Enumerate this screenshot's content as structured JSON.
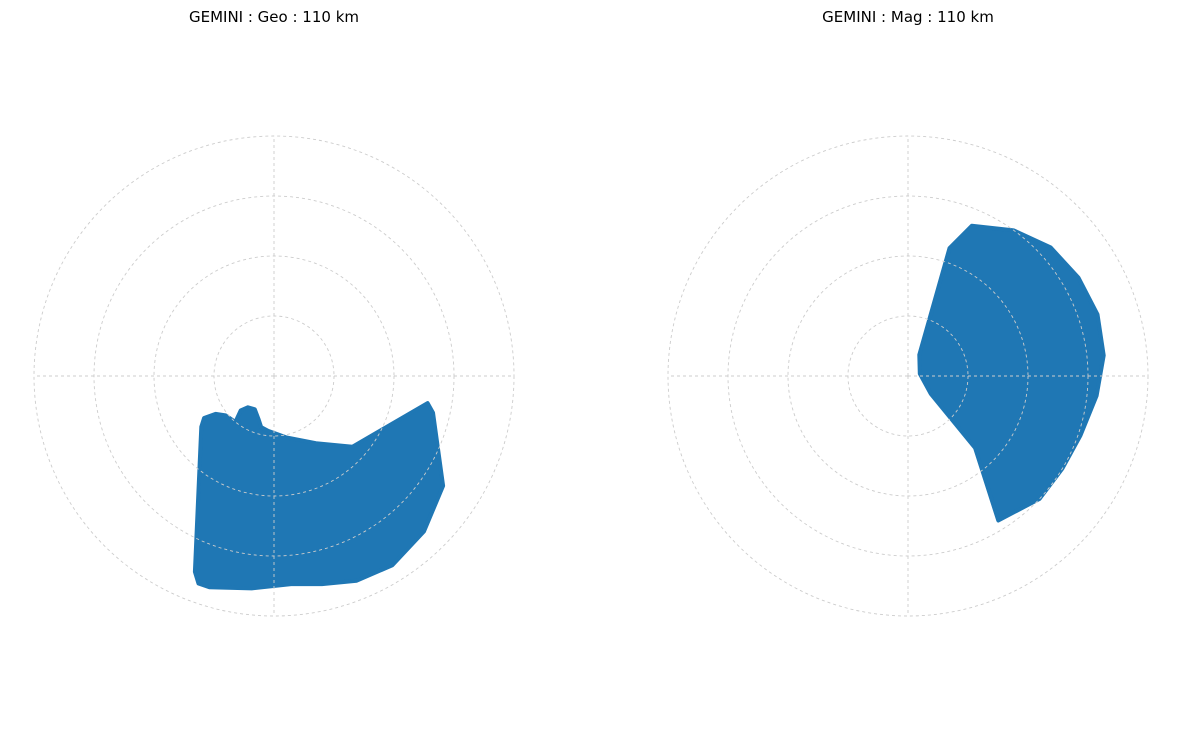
{
  "chart_data": [
    {
      "type": "polar",
      "title": "GEMINI : Geo : 110 km",
      "grid": true,
      "rings": 4,
      "spokes": 4,
      "color": "#1f77b4",
      "coverage_polygon": [
        {
          "r": 0.65,
          "theta": 350
        },
        {
          "r": 0.68,
          "theta": 347
        },
        {
          "r": 0.84,
          "theta": 327
        },
        {
          "r": 0.9,
          "theta": 314
        },
        {
          "r": 0.93,
          "theta": 302
        },
        {
          "r": 0.92,
          "theta": 292
        },
        {
          "r": 0.89,
          "theta": 283
        },
        {
          "r": 0.87,
          "theta": 275
        },
        {
          "r": 0.89,
          "theta": 264
        },
        {
          "r": 0.92,
          "theta": 253
        },
        {
          "r": 0.92,
          "theta": 250
        },
        {
          "r": 0.88,
          "theta": 248
        },
        {
          "r": 0.37,
          "theta": 215
        },
        {
          "r": 0.34,
          "theta": 211
        },
        {
          "r": 0.29,
          "theta": 213
        },
        {
          "r": 0.26,
          "theta": 219
        },
        {
          "r": 0.25,
          "theta": 230
        },
        {
          "r": 0.2,
          "theta": 226
        },
        {
          "r": 0.17,
          "theta": 230
        },
        {
          "r": 0.16,
          "theta": 240
        },
        {
          "r": 0.19,
          "theta": 250
        },
        {
          "r": 0.22,
          "theta": 256
        },
        {
          "r": 0.23,
          "theta": 264
        },
        {
          "r": 0.26,
          "theta": 281
        },
        {
          "r": 0.33,
          "theta": 302
        },
        {
          "r": 0.44,
          "theta": 318
        }
      ]
    },
    {
      "type": "polar",
      "title": "GEMINI : Mag : 110 km",
      "grid": true,
      "rings": 4,
      "spokes": 4,
      "color": "#1f77b4",
      "coverage_polygon": [
        {
          "r": 0.68,
          "theta": 67
        },
        {
          "r": 0.75,
          "theta": 54
        },
        {
          "r": 0.8,
          "theta": 42
        },
        {
          "r": 0.82,
          "theta": 30
        },
        {
          "r": 0.83,
          "theta": 18
        },
        {
          "r": 0.82,
          "theta": 6
        },
        {
          "r": 0.79,
          "theta": 354
        },
        {
          "r": 0.76,
          "theta": 341
        },
        {
          "r": 0.75,
          "theta": 329
        },
        {
          "r": 0.75,
          "theta": 317
        },
        {
          "r": 0.71,
          "theta": 302
        },
        {
          "r": 0.41,
          "theta": 313
        },
        {
          "r": 0.12,
          "theta": 322
        },
        {
          "r": 0.05,
          "theta": 11
        },
        {
          "r": 0.1,
          "theta": 62
        },
        {
          "r": 0.56,
          "theta": 72
        }
      ]
    }
  ]
}
